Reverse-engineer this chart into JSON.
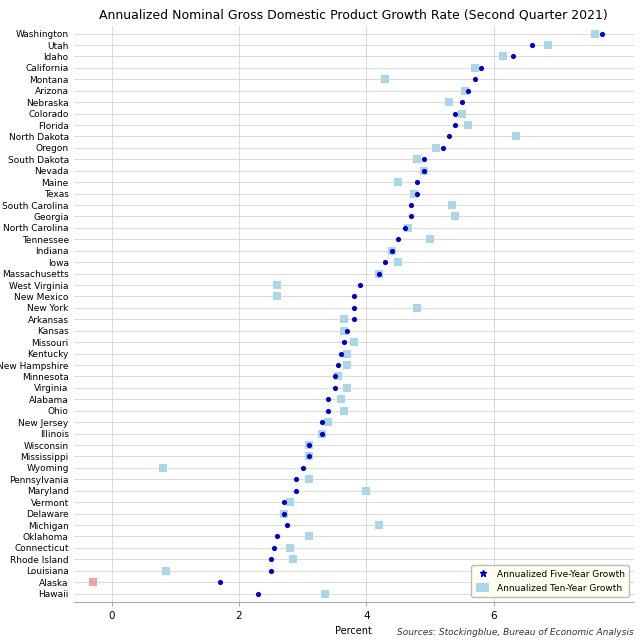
{
  "title": "Annualized Nominal Gross Domestic Product Growth Rate (Second Quarter 2021)",
  "xlabel": "Percent",
  "source": "Sources: Stockingblue, Bureau of Economic Analysis",
  "states": [
    "Washington",
    "Utah",
    "Idaho",
    "California",
    "Montana",
    "Arizona",
    "Nebraska",
    "Colorado",
    "Florida",
    "North Dakota",
    "Oregon",
    "South Dakota",
    "Nevada",
    "Maine",
    "Texas",
    "South Carolina",
    "Georgia",
    "North Carolina",
    "Tennessee",
    "Indiana",
    "Iowa",
    "Massachusetts",
    "West Virginia",
    "New Mexico",
    "New York",
    "Arkansas",
    "Kansas",
    "Missouri",
    "Kentucky",
    "New Hampshire",
    "Minnesota",
    "Virginia",
    "Alabama",
    "Ohio",
    "New Jersey",
    "Illinois",
    "Wisconsin",
    "Mississippi",
    "Wyoming",
    "Pennsylvania",
    "Maryland",
    "Vermont",
    "Delaware",
    "Michigan",
    "Oklahoma",
    "Connecticut",
    "Rhode Island",
    "Louisiana",
    "Alaska",
    "Hawaii"
  ],
  "five_year": [
    7.7,
    6.6,
    6.3,
    5.8,
    5.7,
    5.6,
    5.5,
    5.4,
    5.4,
    5.3,
    5.2,
    4.9,
    4.9,
    4.8,
    4.8,
    4.7,
    4.7,
    4.6,
    4.5,
    4.4,
    4.3,
    4.2,
    3.9,
    3.8,
    3.8,
    3.8,
    3.7,
    3.65,
    3.6,
    3.55,
    3.5,
    3.5,
    3.4,
    3.4,
    3.3,
    3.3,
    3.1,
    3.1,
    3.0,
    2.9,
    2.9,
    2.7,
    2.7,
    2.75,
    2.6,
    2.55,
    2.5,
    2.5,
    1.7,
    2.3
  ],
  "ten_year": [
    7.6,
    6.85,
    6.15,
    5.7,
    4.3,
    5.55,
    5.3,
    5.5,
    5.6,
    6.35,
    5.1,
    4.8,
    4.9,
    4.5,
    4.75,
    5.35,
    5.4,
    4.65,
    5.0,
    4.4,
    4.5,
    4.2,
    2.6,
    2.6,
    4.8,
    3.65,
    3.65,
    3.8,
    3.7,
    3.7,
    3.55,
    3.7,
    3.6,
    3.65,
    3.4,
    3.3,
    3.1,
    3.1,
    0.8,
    3.1,
    4.0,
    2.8,
    2.7,
    4.2,
    3.1,
    2.8,
    2.85,
    0.85,
    -0.3,
    3.35
  ],
  "ten_year_colors": [
    "#a8d8e8",
    "#a8d8e8",
    "#a8d8e8",
    "#a8d8e8",
    "#a8d8e8",
    "#a8d8e8",
    "#a8d8e8",
    "#a8d8e8",
    "#a8d8e8",
    "#a8d8e8",
    "#a8d8e8",
    "#a8d8e8",
    "#a8d8e8",
    "#a8d8e8",
    "#a8d8e8",
    "#a8d8e8",
    "#a8d8e8",
    "#a8d8e8",
    "#a8d8e8",
    "#a8d8e8",
    "#a8d8e8",
    "#a8d8e8",
    "#a8d8e8",
    "#a8d8e8",
    "#a8d8e8",
    "#a8d8e8",
    "#a8d8e8",
    "#a8d8e8",
    "#a8d8e8",
    "#a8d8e8",
    "#a8d8e8",
    "#a8d8e8",
    "#a8d8e8",
    "#a8d8e8",
    "#a8d8e8",
    "#a8d8e8",
    "#a8d8e8",
    "#a8d8e8",
    "#a8d8e8",
    "#a8d8e8",
    "#a8d8e8",
    "#a8d8e8",
    "#a8d8e8",
    "#a8d8e8",
    "#a8d8e8",
    "#a8d8e8",
    "#a8d8e8",
    "#a8d8e8",
    "#f4a0a0",
    "#a8d8e8"
  ],
  "dot_color": "#0000cc",
  "square_color": "#a8d8e8",
  "bg_color": "#ffffff",
  "grid_color": "#cccccc",
  "legend_bg": "#fffff0",
  "xlim": [
    -0.6,
    8.2
  ],
  "xticks": [
    0,
    2,
    4,
    6
  ],
  "xtick_labels": [
    "0",
    "2",
    "4",
    "6"
  ],
  "title_fontsize": 9,
  "label_fontsize": 7,
  "tick_fontsize": 7.5,
  "state_fontsize": 6.5
}
